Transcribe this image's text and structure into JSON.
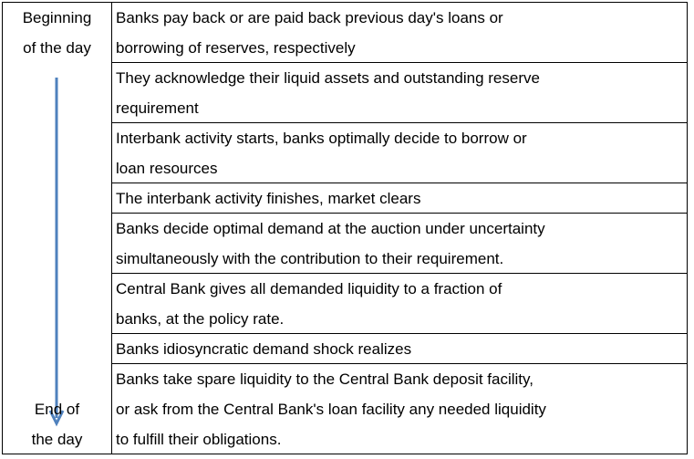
{
  "left_column": {
    "top": [
      "Beginning",
      "of the day"
    ],
    "bottom": [
      "End of",
      "the day"
    ]
  },
  "rows": [
    {
      "lines": [
        "Banks pay back or are paid back previous day's loans or",
        "borrowing of reserves, respectively"
      ]
    },
    {
      "lines": [
        "They acknowledge their liquid assets and outstanding reserve",
        "requirement"
      ]
    },
    {
      "lines": [
        "Interbank activity starts, banks optimally decide to borrow or",
        "loan resources"
      ]
    },
    {
      "lines": [
        "The interbank activity finishes, market clears"
      ]
    },
    {
      "lines": [
        "Banks decide optimal demand at the auction under uncertainty",
        "simultaneously with the contribution to their requirement."
      ]
    },
    {
      "lines": [
        "Central Bank gives all demanded liquidity to a fraction of",
        "banks, at the policy rate."
      ]
    },
    {
      "lines": [
        "Banks idiosyncratic demand shock realizes"
      ]
    },
    {
      "lines": [
        "Banks take spare liquidity to the Central Bank deposit facility,",
        "or ask from the Central Bank's loan facility any needed liquidity",
        "to fulfill their obligations."
      ]
    }
  ]
}
